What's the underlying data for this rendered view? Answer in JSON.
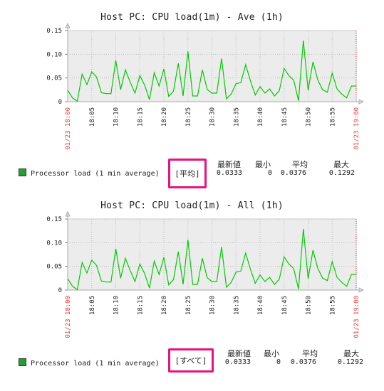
{
  "panels": [
    {
      "title": "Host PC: CPU load(1m) - Ave (1h)",
      "legend_label": "Processor load (1 min average)",
      "function_label": "[平均]",
      "stats_headers": [
        "最新値",
        "最小",
        "平均",
        "最大"
      ],
      "stats_values": [
        "0.0333",
        "0",
        "0.0376",
        "0.1292"
      ]
    },
    {
      "title": "Host PC: CPU load(1m) - All (1h)",
      "legend_label": "Processor load (1 min average)",
      "function_label": "[すべて]",
      "stats_headers": [
        "最新値",
        "最小",
        "平均",
        "最大"
      ],
      "stats_values": [
        "0.0333",
        "0",
        "0.0376",
        "0.1292"
      ]
    }
  ],
  "chart_data": [
    {
      "type": "line",
      "title": "Host PC: CPU load(1m) - Ave (1h)",
      "ylim": [
        0,
        0.15
      ],
      "y_ticks": [
        "0.15",
        "0.10",
        "0.05",
        "0"
      ],
      "x_tick_labels": [
        "18:05",
        "18:10",
        "18:15",
        "18:20",
        "18:25",
        "18:30",
        "18:35",
        "18:40",
        "18:45",
        "18:50",
        "18:55"
      ],
      "x_edge_labels": [
        "01/23 18:00",
        "01/23 19:00"
      ],
      "grid": true,
      "legend": "bottom-left",
      "series": [
        {
          "name": "Processor load (1 min average)",
          "color": "#00cc00",
          "x_minutes": [
            0,
            1,
            2,
            3,
            4,
            5,
            6,
            7,
            8,
            9,
            10,
            11,
            12,
            13,
            14,
            15,
            16,
            17,
            18,
            19,
            20,
            21,
            22,
            23,
            24,
            25,
            26,
            27,
            28,
            29,
            30,
            31,
            32,
            33,
            34,
            35,
            36,
            37,
            38,
            39,
            40,
            41,
            42,
            43,
            44,
            45,
            46,
            47,
            48,
            49,
            50,
            51,
            52,
            53,
            54,
            55,
            56,
            57,
            58,
            59,
            60
          ],
          "values": [
            0.024,
            0.008,
            0.001,
            0.058,
            0.036,
            0.063,
            0.052,
            0.019,
            0.017,
            0.017,
            0.087,
            0.025,
            0.067,
            0.041,
            0.018,
            0.055,
            0.035,
            0.004,
            0.061,
            0.033,
            0.069,
            0.011,
            0.022,
            0.081,
            0.012,
            0.106,
            0.012,
            0.012,
            0.067,
            0.026,
            0.018,
            0.018,
            0.091,
            0.006,
            0.016,
            0.038,
            0.04,
            0.078,
            0.044,
            0.014,
            0.032,
            0.018,
            0.027,
            0.012,
            0.023,
            0.07,
            0.055,
            0.045,
            0.002,
            0.129,
            0.024,
            0.084,
            0.046,
            0.025,
            0.02,
            0.06,
            0.027,
            0.016,
            0.008,
            0.033,
            0.033
          ]
        }
      ]
    },
    {
      "type": "line",
      "title": "Host PC: CPU load(1m) - All (1h)",
      "ylim": [
        0,
        0.15
      ],
      "y_ticks": [
        "0.15",
        "0.10",
        "0.05",
        "0"
      ],
      "x_tick_labels": [
        "18:05",
        "18:10",
        "18:15",
        "18:20",
        "18:25",
        "18:30",
        "18:35",
        "18:40",
        "18:45",
        "18:50",
        "18:55"
      ],
      "x_edge_labels": [
        "01/23 18:00",
        "01/23 19:00"
      ],
      "grid": true,
      "legend": "bottom-left",
      "series": [
        {
          "name": "Processor load (1 min average)",
          "color": "#00cc00",
          "x_minutes": [
            0,
            1,
            2,
            3,
            4,
            5,
            6,
            7,
            8,
            9,
            10,
            11,
            12,
            13,
            14,
            15,
            16,
            17,
            18,
            19,
            20,
            21,
            22,
            23,
            24,
            25,
            26,
            27,
            28,
            29,
            30,
            31,
            32,
            33,
            34,
            35,
            36,
            37,
            38,
            39,
            40,
            41,
            42,
            43,
            44,
            45,
            46,
            47,
            48,
            49,
            50,
            51,
            52,
            53,
            54,
            55,
            56,
            57,
            58,
            59,
            60
          ],
          "values": [
            0.024,
            0.008,
            0.001,
            0.058,
            0.036,
            0.063,
            0.052,
            0.019,
            0.017,
            0.017,
            0.087,
            0.025,
            0.067,
            0.041,
            0.018,
            0.055,
            0.035,
            0.004,
            0.061,
            0.033,
            0.069,
            0.011,
            0.022,
            0.081,
            0.012,
            0.106,
            0.012,
            0.012,
            0.067,
            0.026,
            0.018,
            0.018,
            0.091,
            0.006,
            0.016,
            0.038,
            0.04,
            0.078,
            0.044,
            0.014,
            0.032,
            0.018,
            0.027,
            0.012,
            0.023,
            0.07,
            0.055,
            0.045,
            0.002,
            0.129,
            0.024,
            0.084,
            0.046,
            0.025,
            0.02,
            0.06,
            0.027,
            0.016,
            0.008,
            0.033,
            0.033
          ]
        }
      ]
    }
  ]
}
